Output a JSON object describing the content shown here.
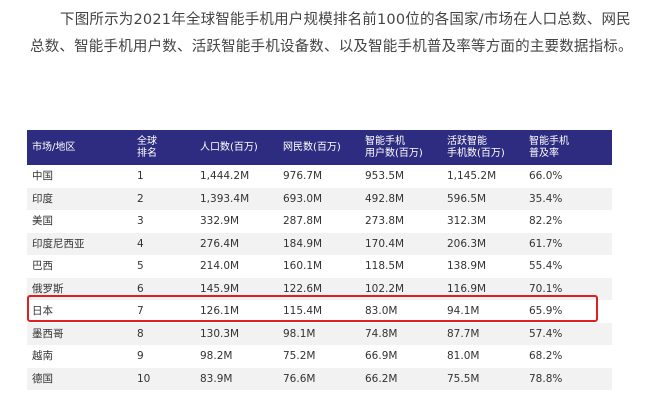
{
  "paragraph": {
    "lines": [
      "下图所示为2021年全球智能手机用户规模排名前100位的各国家/市场在人口总数、网民",
      "总数、智能手机用户数、活跃智能手机设备数、以及智能手机普及率等方面的主要数据指标。"
    ]
  },
  "table": {
    "header": [
      [
        "市场/地区"
      ],
      [
        "全球",
        "排名"
      ],
      [
        "人口数(百万)"
      ],
      [
        "网民数(百万)"
      ],
      [
        "智能手机",
        "用户数(百万)"
      ],
      [
        "活跃智能",
        "手机数(百万)"
      ],
      [
        "智能手机",
        "普及率"
      ]
    ],
    "rows": [
      [
        "中国",
        "1",
        "1,444.2M",
        "976.7M",
        "953.5M",
        "1,145.2M",
        "66.0%"
      ],
      [
        "印度",
        "2",
        "1,393.4M",
        "693.0M",
        "492.8M",
        "596.5M",
        "35.4%"
      ],
      [
        "美国",
        "3",
        "332.9M",
        "287.8M",
        "273.8M",
        "312.3M",
        "82.2%"
      ],
      [
        "印度尼西亚",
        "4",
        "276.4M",
        "184.9M",
        "170.4M",
        "206.3M",
        "61.7%"
      ],
      [
        "巴西",
        "5",
        "214.0M",
        "160.1M",
        "118.5M",
        "138.9M",
        "55.4%"
      ],
      [
        "俄罗斯",
        "6",
        "145.9M",
        "122.6M",
        "102.2M",
        "116.9M",
        "70.1%"
      ],
      [
        "日本",
        "7",
        "126.1M",
        "115.4M",
        "83.0M",
        "94.1M",
        "65.9%"
      ],
      [
        "墨西哥",
        "8",
        "130.3M",
        "98.1M",
        "74.8M",
        "87.7M",
        "57.4%"
      ],
      [
        "越南",
        "9",
        "98.2M",
        "75.2M",
        "66.9M",
        "81.0M",
        "68.2%"
      ],
      [
        "德国",
        "10",
        "83.9M",
        "76.6M",
        "66.2M",
        "75.5M",
        "78.8%"
      ]
    ]
  }
}
